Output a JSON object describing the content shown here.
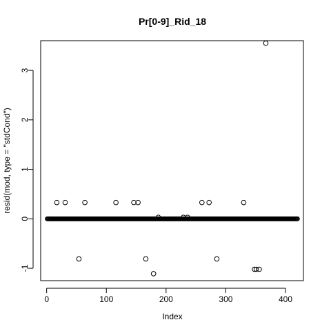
{
  "chart_data": {
    "type": "scatter",
    "title": "Pr[0-9]_Rid_18",
    "xlabel": "Index",
    "ylabel": "resid(mod, type = \"stdCond\")",
    "xlim": [
      -10,
      430
    ],
    "ylim": [
      -1.25,
      3.6
    ],
    "x_ticks": [
      0,
      100,
      200,
      300,
      400
    ],
    "y_ticks": [
      -1,
      0,
      1,
      2,
      3
    ],
    "grid": false,
    "legend": "none",
    "marker": "open-circle",
    "baseline": {
      "x_from": 1,
      "x_to": 420,
      "y": 0
    },
    "points": [
      {
        "x": 17,
        "y": 0.33
      },
      {
        "x": 31,
        "y": 0.33
      },
      {
        "x": 54,
        "y": -0.81
      },
      {
        "x": 64,
        "y": 0.33
      },
      {
        "x": 116,
        "y": 0.33
      },
      {
        "x": 146,
        "y": 0.33
      },
      {
        "x": 153,
        "y": 0.33
      },
      {
        "x": 166,
        "y": -0.81
      },
      {
        "x": 179,
        "y": -1.11
      },
      {
        "x": 187,
        "y": 0.03
      },
      {
        "x": 229,
        "y": 0.03
      },
      {
        "x": 236,
        "y": 0.03
      },
      {
        "x": 260,
        "y": 0.33
      },
      {
        "x": 272,
        "y": 0.33
      },
      {
        "x": 285,
        "y": -0.81
      },
      {
        "x": 330,
        "y": 0.33
      },
      {
        "x": 348,
        "y": -1.02
      },
      {
        "x": 351,
        "y": -1.02
      },
      {
        "x": 356,
        "y": -1.02
      },
      {
        "x": 367,
        "y": 3.55
      }
    ],
    "colors": {
      "marker": "#000000",
      "axis": "#000000",
      "background": "#ffffff"
    }
  }
}
